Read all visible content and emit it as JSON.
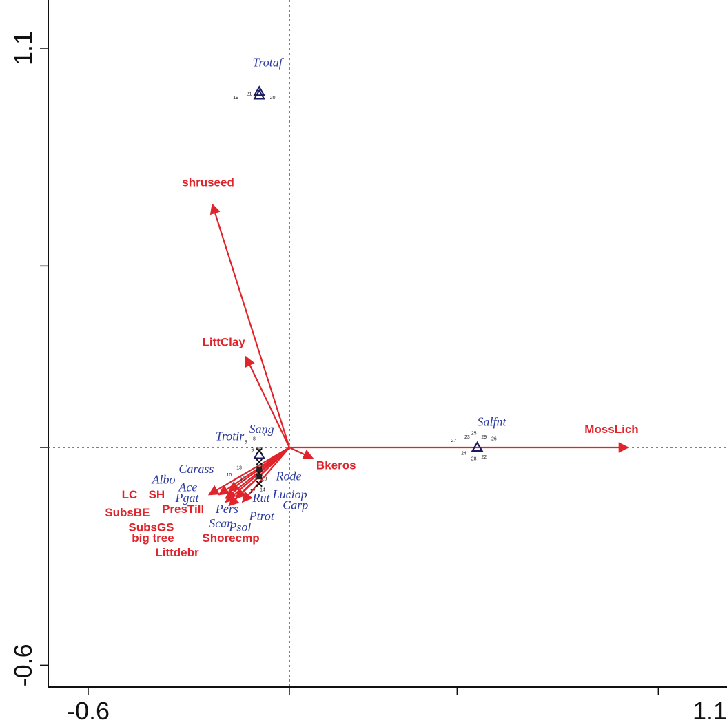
{
  "colors": {
    "env": "#e0242b",
    "species": "#2b3aa0",
    "axis": "#111111",
    "guide": "#555555"
  },
  "chart_data": {
    "type": "scatter",
    "xlim": [
      -0.6,
      1.1
    ],
    "ylim": [
      -0.6,
      1.1
    ],
    "x_ticks": [
      -0.6,
      0,
      0.5,
      1.1
    ],
    "y_ticks": [
      -0.6,
      0,
      0.5,
      1.1
    ],
    "x_tick_labels": [
      "-0.6",
      "1.1"
    ],
    "y_tick_labels": [
      "-0.6",
      "1.1"
    ],
    "reference_lines": {
      "x": 0,
      "y": 0,
      "style": "dotted"
    },
    "env_arrows": [
      {
        "name": "shruseed",
        "x": -0.23,
        "y": 0.67,
        "lx": -0.32,
        "ly": 0.72
      },
      {
        "name": "LittClay",
        "x": -0.13,
        "y": 0.25,
        "lx": -0.26,
        "ly": 0.28
      },
      {
        "name": "MossLich",
        "x": 1.01,
        "y": 0.0,
        "lx": 0.88,
        "ly": 0.04
      },
      {
        "name": "Bkeros",
        "x": 0.07,
        "y": -0.03,
        "lx": 0.08,
        "ly": -0.06
      },
      {
        "name": "LC",
        "x": -0.24,
        "y": -0.13,
        "lx": -0.5,
        "ly": -0.14
      },
      {
        "name": "SH",
        "x": -0.21,
        "y": -0.13,
        "lx": -0.42,
        "ly": -0.14
      },
      {
        "name": "SubsBE",
        "x": -0.18,
        "y": -0.12,
        "lx": -0.55,
        "ly": -0.19
      },
      {
        "name": "PresTill",
        "x": -0.19,
        "y": -0.14,
        "lx": -0.38,
        "ly": -0.18
      },
      {
        "name": "SubsGS",
        "x": -0.16,
        "y": -0.14,
        "lx": -0.48,
        "ly": -0.23
      },
      {
        "name": "big tree",
        "x": -0.19,
        "y": -0.15,
        "lx": -0.47,
        "ly": -0.26
      },
      {
        "name": "Shorecmp",
        "x": -0.14,
        "y": -0.15,
        "lx": -0.26,
        "ly": -0.26
      },
      {
        "name": "Littdebr",
        "x": -0.18,
        "y": -0.16,
        "lx": -0.4,
        "ly": -0.3
      }
    ],
    "species": [
      {
        "name": "Trotaf",
        "x": -0.11,
        "y": 1.05
      },
      {
        "name": "Salfnt",
        "x": 0.56,
        "y": 0.06
      },
      {
        "name": "Sang",
        "x": -0.12,
        "y": 0.04
      },
      {
        "name": "Trotir",
        "x": -0.22,
        "y": 0.02
      },
      {
        "name": "Carass",
        "x": -0.33,
        "y": -0.07
      },
      {
        "name": "Albo",
        "x": -0.41,
        "y": -0.1
      },
      {
        "name": "Ace",
        "x": -0.33,
        "y": -0.12
      },
      {
        "name": "Pgat",
        "x": -0.34,
        "y": -0.15
      },
      {
        "name": "Rode",
        "x": -0.04,
        "y": -0.09
      },
      {
        "name": "Luciop",
        "x": -0.05,
        "y": -0.14
      },
      {
        "name": "Rut",
        "x": -0.11,
        "y": -0.15
      },
      {
        "name": "Carp",
        "x": -0.02,
        "y": -0.17
      },
      {
        "name": "Pers",
        "x": -0.22,
        "y": -0.18
      },
      {
        "name": "Ptrot",
        "x": -0.12,
        "y": -0.2
      },
      {
        "name": "Scar",
        "x": -0.24,
        "y": -0.22
      },
      {
        "name": "Psol",
        "x": -0.18,
        "y": -0.23
      }
    ],
    "sites": [
      {
        "label": "19",
        "x": -0.16,
        "y": 0.96
      },
      {
        "label": "21",
        "x": -0.12,
        "y": 0.97
      },
      {
        "label": "20",
        "x": -0.05,
        "y": 0.96
      },
      {
        "label": "8",
        "x": -0.105,
        "y": 0.02
      },
      {
        "label": "7",
        "x": -0.075,
        "y": 0.03
      },
      {
        "label": "5",
        "x": -0.13,
        "y": 0.01
      },
      {
        "label": "6",
        "x": -0.11,
        "y": -0.01
      },
      {
        "label": "9",
        "x": -0.09,
        "y": -0.01
      },
      {
        "label": "13",
        "x": -0.15,
        "y": -0.06
      },
      {
        "label": "10",
        "x": -0.18,
        "y": -0.08
      },
      {
        "label": "2",
        "x": -0.085,
        "y": -0.06
      },
      {
        "label": "15",
        "x": -0.14,
        "y": -0.09
      },
      {
        "label": "18",
        "x": -0.075,
        "y": -0.09
      },
      {
        "label": "17",
        "x": -0.11,
        "y": -0.125
      },
      {
        "label": "14",
        "x": -0.08,
        "y": -0.12
      },
      {
        "label": "27",
        "x": 0.49,
        "y": 0.015
      },
      {
        "label": "23",
        "x": 0.53,
        "y": 0.025
      },
      {
        "label": "25",
        "x": 0.55,
        "y": 0.035
      },
      {
        "label": "29",
        "x": 0.58,
        "y": 0.025
      },
      {
        "label": "26",
        "x": 0.61,
        "y": 0.02
      },
      {
        "label": "24",
        "x": 0.52,
        "y": -0.02
      },
      {
        "label": "28",
        "x": 0.55,
        "y": -0.035
      },
      {
        "label": "22",
        "x": 0.58,
        "y": -0.03
      }
    ],
    "markers": [
      {
        "shape": "triangle",
        "x": -0.09,
        "y": 0.97
      },
      {
        "shape": "triangle",
        "x": -0.09,
        "y": 0.98
      },
      {
        "shape": "triangle",
        "x": 0.56,
        "y": 0.0
      },
      {
        "shape": "triangle",
        "x": 0.56,
        "y": 0.0
      },
      {
        "shape": "triangle",
        "x": -0.09,
        "y": -0.02
      },
      {
        "shape": "cross",
        "x": -0.09,
        "y": -0.01
      },
      {
        "shape": "cross",
        "x": -0.09,
        "y": -0.04
      },
      {
        "shape": "cross",
        "x": -0.09,
        "y": -0.07
      },
      {
        "shape": "cross",
        "x": -0.09,
        "y": -0.1
      },
      {
        "shape": "square",
        "x": -0.09,
        "y": -0.06
      },
      {
        "shape": "square",
        "x": -0.09,
        "y": -0.08
      }
    ]
  }
}
